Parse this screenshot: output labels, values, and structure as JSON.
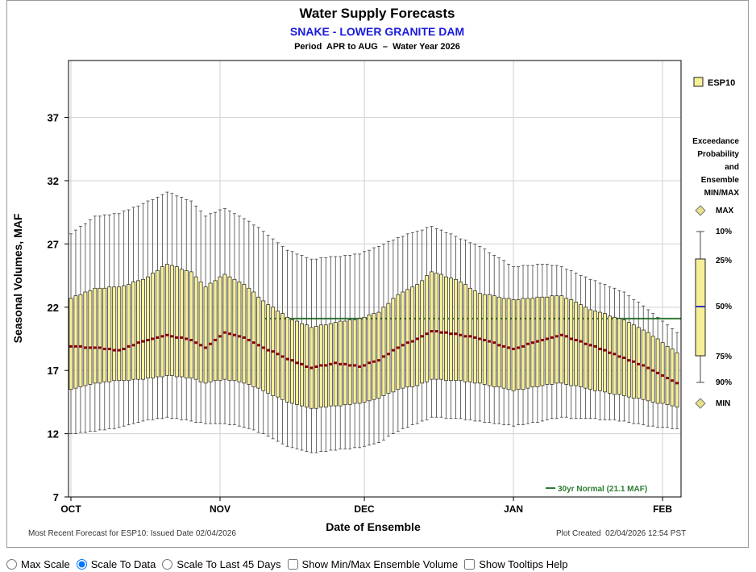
{
  "chart_data": {
    "type": "boxplot",
    "title": "Water Supply Forecasts",
    "subtitle": "SNAKE - LOWER GRANITE DAM",
    "period": "Period  APR to AUG  –  Water Year 2026",
    "y_label": "Seasonal Volumes, MAF",
    "x_label": "Date of Ensemble",
    "footer_left": "Most Recent Forecast for ESP10: Issued Date 02/04/2026",
    "footer_right": "Plot Created  02/04/2026 12:54 PST",
    "categories": [
      "OCT",
      null,
      null,
      null,
      null,
      null,
      null,
      null,
      null,
      null,
      null,
      null,
      null,
      null,
      null,
      null,
      null,
      null,
      null,
      null,
      null,
      null,
      null,
      null,
      null,
      null,
      null,
      null,
      null,
      null,
      null,
      "NOV",
      null,
      null,
      null,
      null,
      null,
      null,
      null,
      null,
      null,
      null,
      null,
      null,
      null,
      null,
      null,
      null,
      null,
      null,
      null,
      null,
      null,
      null,
      null,
      null,
      null,
      null,
      null,
      null,
      null,
      "DEC",
      null,
      null,
      null,
      null,
      null,
      null,
      null,
      null,
      null,
      null,
      null,
      null,
      null,
      null,
      null,
      null,
      null,
      null,
      null,
      null,
      null,
      null,
      null,
      null,
      null,
      null,
      null,
      null,
      null,
      null,
      "JAN",
      null,
      null,
      null,
      null,
      null,
      null,
      null,
      null,
      null,
      null,
      null,
      null,
      null,
      null,
      null,
      null,
      null,
      null,
      null,
      null,
      null,
      null,
      null,
      null,
      null,
      null,
      null,
      null,
      null,
      null,
      "FEB",
      null,
      null,
      null
    ],
    "series": [
      {
        "name": "ESP10",
        "color": "#f7ef98",
        "median_color": "#8b0000",
        "p10": [
          12.0,
          12.0,
          12.1,
          12.1,
          12.2,
          12.2,
          12.3,
          12.3,
          12.4,
          12.4,
          12.5,
          12.6,
          12.7,
          12.8,
          12.9,
          13.0,
          13.1,
          13.1,
          13.2,
          13.2,
          13.3,
          13.2,
          13.2,
          13.1,
          13.1,
          13.0,
          12.9,
          12.9,
          12.8,
          12.8,
          12.8,
          12.8,
          12.8,
          12.7,
          12.7,
          12.6,
          12.5,
          12.4,
          12.3,
          12.1,
          12.0,
          11.8,
          11.6,
          11.4,
          11.2,
          11.0,
          10.9,
          10.8,
          10.7,
          10.6,
          10.5,
          10.5,
          10.6,
          10.6,
          10.7,
          10.7,
          10.8,
          10.8,
          10.8,
          10.9,
          10.9,
          11.0,
          11.1,
          11.2,
          11.3,
          11.5,
          11.8,
          12.0,
          12.2,
          12.4,
          12.5,
          12.7,
          12.8,
          13.0,
          13.1,
          13.3,
          13.3,
          13.3,
          13.2,
          13.2,
          13.2,
          13.2,
          13.1,
          13.1,
          13.0,
          13.0,
          12.9,
          12.9,
          12.8,
          12.8,
          12.7,
          12.7,
          12.6,
          12.7,
          12.7,
          12.8,
          12.9,
          12.9,
          13.0,
          13.1,
          13.2,
          13.2,
          13.3,
          13.3,
          13.2,
          13.2,
          13.2,
          13.2,
          13.2,
          13.2,
          13.1,
          13.1,
          13.1,
          13.1,
          13.0,
          13.0,
          12.9,
          12.8,
          12.8,
          12.7,
          12.6,
          12.6,
          12.5,
          12.5,
          12.5,
          12.4,
          12.4
        ],
        "p25": [
          15.5,
          15.6,
          15.7,
          15.8,
          15.9,
          16.0,
          16.0,
          16.1,
          16.1,
          16.2,
          16.2,
          16.2,
          16.2,
          16.3,
          16.3,
          16.3,
          16.4,
          16.4,
          16.5,
          16.5,
          16.6,
          16.6,
          16.5,
          16.5,
          16.4,
          16.4,
          16.3,
          16.1,
          16.0,
          16.1,
          16.2,
          16.2,
          16.3,
          16.2,
          16.2,
          16.1,
          16.0,
          15.9,
          15.7,
          15.6,
          15.4,
          15.2,
          15.0,
          14.9,
          14.7,
          14.5,
          14.4,
          14.3,
          14.2,
          14.1,
          14.0,
          14.0,
          14.1,
          14.1,
          14.2,
          14.2,
          14.2,
          14.3,
          14.3,
          14.4,
          14.4,
          14.5,
          14.6,
          14.7,
          14.8,
          15.0,
          15.2,
          15.3,
          15.5,
          15.6,
          15.7,
          15.7,
          15.8,
          16.0,
          16.1,
          16.3,
          16.3,
          16.3,
          16.2,
          16.2,
          16.2,
          16.2,
          16.1,
          16.1,
          16.0,
          16.0,
          15.9,
          15.8,
          15.7,
          15.7,
          15.6,
          15.5,
          15.4,
          15.5,
          15.5,
          15.6,
          15.7,
          15.7,
          15.8,
          15.9,
          15.9,
          16.0,
          16.0,
          15.9,
          15.8,
          15.8,
          15.7,
          15.6,
          15.5,
          15.4,
          15.4,
          15.3,
          15.2,
          15.1,
          15.1,
          15.0,
          14.9,
          14.8,
          14.8,
          14.7,
          14.6,
          14.5,
          14.4,
          14.4,
          14.3,
          14.2,
          14.1
        ],
        "p50": [
          18.9,
          18.9,
          18.9,
          18.8,
          18.8,
          18.8,
          18.8,
          18.7,
          18.7,
          18.6,
          18.6,
          18.7,
          18.9,
          19.0,
          19.2,
          19.3,
          19.4,
          19.5,
          19.6,
          19.7,
          19.8,
          19.7,
          19.6,
          19.6,
          19.5,
          19.4,
          19.2,
          19.0,
          18.8,
          19.1,
          19.4,
          19.7,
          20.0,
          19.9,
          19.8,
          19.7,
          19.6,
          19.4,
          19.2,
          19.0,
          18.8,
          18.6,
          18.5,
          18.3,
          18.1,
          17.9,
          17.8,
          17.6,
          17.5,
          17.3,
          17.2,
          17.3,
          17.4,
          17.4,
          17.5,
          17.6,
          17.5,
          17.5,
          17.4,
          17.4,
          17.3,
          17.4,
          17.6,
          17.7,
          17.8,
          18.1,
          18.3,
          18.6,
          18.8,
          19.0,
          19.2,
          19.3,
          19.5,
          19.7,
          19.9,
          20.1,
          20.1,
          20.0,
          20.0,
          19.9,
          19.9,
          19.8,
          19.7,
          19.7,
          19.6,
          19.5,
          19.4,
          19.3,
          19.2,
          19.0,
          18.9,
          18.8,
          18.7,
          18.8,
          18.9,
          19.1,
          19.2,
          19.3,
          19.4,
          19.5,
          19.6,
          19.7,
          19.8,
          19.7,
          19.5,
          19.4,
          19.3,
          19.1,
          19.0,
          18.9,
          18.7,
          18.6,
          18.4,
          18.3,
          18.1,
          18.0,
          17.8,
          17.7,
          17.5,
          17.4,
          17.2,
          17.0,
          16.8,
          16.6,
          16.4,
          16.2,
          16.0
        ],
        "p75": [
          22.7,
          22.9,
          23.0,
          23.2,
          23.3,
          23.5,
          23.5,
          23.5,
          23.6,
          23.6,
          23.6,
          23.7,
          23.8,
          24.0,
          24.1,
          24.2,
          24.4,
          24.7,
          24.9,
          25.2,
          25.4,
          25.3,
          25.2,
          25.0,
          24.9,
          24.8,
          24.4,
          24.0,
          23.6,
          23.9,
          24.1,
          24.4,
          24.6,
          24.4,
          24.2,
          24.0,
          23.8,
          23.5,
          23.2,
          22.8,
          22.5,
          22.2,
          22.0,
          21.7,
          21.5,
          21.2,
          21.0,
          20.9,
          20.7,
          20.6,
          20.4,
          20.5,
          20.6,
          20.6,
          20.7,
          20.8,
          20.9,
          20.9,
          21.0,
          21.0,
          21.1,
          21.2,
          21.4,
          21.5,
          21.6,
          22.0,
          22.3,
          22.7,
          23.0,
          23.2,
          23.4,
          23.6,
          23.8,
          24.1,
          24.5,
          24.8,
          24.7,
          24.6,
          24.4,
          24.3,
          24.2,
          24.0,
          23.8,
          23.5,
          23.3,
          23.1,
          23.0,
          23.0,
          22.9,
          22.8,
          22.7,
          22.7,
          22.6,
          22.6,
          22.7,
          22.7,
          22.7,
          22.8,
          22.8,
          22.8,
          22.9,
          22.9,
          22.9,
          22.7,
          22.6,
          22.4,
          22.2,
          22.0,
          21.8,
          21.7,
          21.6,
          21.5,
          21.3,
          21.2,
          21.1,
          21.0,
          20.8,
          20.6,
          20.4,
          20.2,
          20.0,
          19.7,
          19.5,
          19.2,
          18.9,
          18.7,
          18.4
        ],
        "p90": [
          27.8,
          28.1,
          28.4,
          28.6,
          28.9,
          29.2,
          29.2,
          29.3,
          29.3,
          29.4,
          29.4,
          29.6,
          29.7,
          29.9,
          30.0,
          30.2,
          30.4,
          30.5,
          30.7,
          30.9,
          31.1,
          31.0,
          30.8,
          30.7,
          30.5,
          30.4,
          30.0,
          29.6,
          29.2,
          29.4,
          29.5,
          29.7,
          29.8,
          29.6,
          29.4,
          29.2,
          29.0,
          28.8,
          28.5,
          28.3,
          28.0,
          27.7,
          27.4,
          27.1,
          26.8,
          26.5,
          26.4,
          26.2,
          26.1,
          25.9,
          25.8,
          25.8,
          25.9,
          25.9,
          26.0,
          26.0,
          26.0,
          26.1,
          26.1,
          26.2,
          26.2,
          26.4,
          26.5,
          26.7,
          26.8,
          27.0,
          27.2,
          27.3,
          27.5,
          27.6,
          27.8,
          27.9,
          28.0,
          28.1,
          28.3,
          28.4,
          28.2,
          28.1,
          27.9,
          27.8,
          27.6,
          27.4,
          27.3,
          27.1,
          27.0,
          26.8,
          26.6,
          26.3,
          26.1,
          25.9,
          25.7,
          25.4,
          25.2,
          25.2,
          25.3,
          25.3,
          25.3,
          25.4,
          25.4,
          25.4,
          25.3,
          25.3,
          25.2,
          25.0,
          24.9,
          24.7,
          24.5,
          24.4,
          24.2,
          24.1,
          23.9,
          23.8,
          23.6,
          23.5,
          23.3,
          23.2,
          22.9,
          22.6,
          22.4,
          22.1,
          21.8,
          21.5,
          21.2,
          20.9,
          20.6,
          20.3,
          20.0
        ]
      }
    ],
    "ylim": [
      7,
      41.5
    ],
    "yticks": [
      7,
      12,
      17,
      22,
      27,
      32,
      37
    ],
    "grid": true,
    "normal": {
      "value": 21.1,
      "label": "30yr Normal (21.1 MAF)",
      "color": "#2e7d32"
    },
    "legend_key": {
      "title": [
        "Exceedance",
        "Probability",
        "and",
        "Ensemble",
        "MIN/MAX"
      ],
      "max": "MAX",
      "p10": "10%",
      "p25": "25%",
      "p50": "50%",
      "p75": "75%",
      "p90": "90%",
      "min": "MIN",
      "median_color": "#3030c0"
    }
  },
  "controls": [
    {
      "kind": "radio",
      "label": "Max Scale",
      "checked": false
    },
    {
      "kind": "radio",
      "label": "Scale To Data",
      "checked": true
    },
    {
      "kind": "radio",
      "label": "Scale To Last 45 Days",
      "checked": false
    },
    {
      "kind": "checkbox",
      "label": "Show Min/Max Ensemble Volume",
      "checked": false
    },
    {
      "kind": "checkbox",
      "label": "Show Tooltips Help",
      "checked": false
    }
  ]
}
